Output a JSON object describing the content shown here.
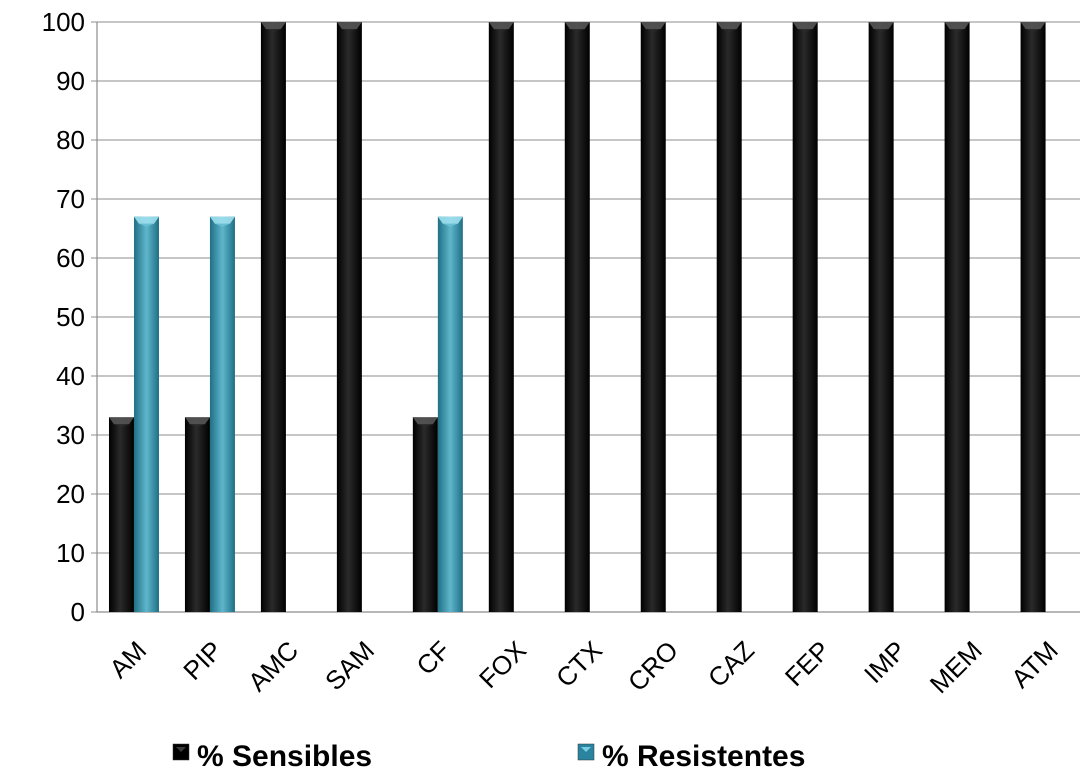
{
  "chart_data": {
    "type": "bar",
    "title": "",
    "xlabel": "",
    "ylabel": "",
    "ylim": [
      0,
      100
    ],
    "yticks": [
      0,
      10,
      20,
      30,
      40,
      50,
      60,
      70,
      80,
      90,
      100
    ],
    "grid": true,
    "legend_position": "bottom",
    "categories": [
      "AM",
      "PIP",
      "AMC",
      "SAM",
      "CF",
      "FOX",
      "CTX",
      "CRO",
      "CAZ",
      "FEP",
      "IMP",
      "MEM",
      "ATM"
    ],
    "series": [
      {
        "name": "% Sensibles",
        "color": "#111111",
        "values": [
          33,
          33,
          100,
          100,
          33,
          100,
          100,
          100,
          100,
          100,
          100,
          100,
          100
        ]
      },
      {
        "name": "% Resistentes",
        "color": "#3f97ad",
        "values": [
          67,
          67,
          0,
          0,
          67,
          0,
          0,
          0,
          0,
          0,
          0,
          0,
          0
        ]
      }
    ]
  }
}
